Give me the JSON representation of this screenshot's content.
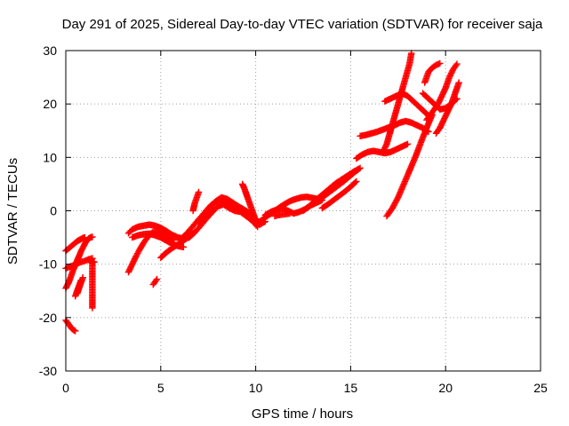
{
  "chart_data": {
    "type": "scatter",
    "title": "Day 291 of 2025, Sidereal Day-to-day VTEC variation (SDTVAR) for receiver saja",
    "xlabel": "GPS time / hours",
    "ylabel": "SDTVAR / TECUs",
    "xlim": [
      0,
      25
    ],
    "ylim": [
      -30,
      30
    ],
    "x_ticks": [
      "0",
      "5",
      "10",
      "15",
      "20",
      "25"
    ],
    "y_ticks": [
      "-30",
      "-20",
      "-10",
      "0",
      "10",
      "20",
      "30"
    ],
    "grid": true,
    "marker": "+",
    "color": "#ff0000",
    "series": [
      {
        "x": [
          0.0,
          0.1,
          0.2,
          0.3,
          0.4,
          0.5,
          0.6,
          0.7,
          0.8,
          0.9,
          1.0,
          1.1,
          1.2,
          1.3,
          1.4
        ],
        "y": [
          -14.5,
          -13.8,
          -13.0,
          -12.0,
          -11.0,
          -10.2,
          -9.3,
          -8.5,
          -7.6,
          -6.9,
          -6.2,
          -5.6,
          -5.2,
          -5.0,
          -4.9
        ]
      },
      {
        "x": [
          0.0,
          0.1,
          0.2,
          0.3,
          0.4,
          0.5,
          0.6,
          0.7,
          0.8,
          0.9,
          1.0
        ],
        "y": [
          -7.5,
          -7.2,
          -6.9,
          -6.6,
          -6.3,
          -6.0,
          -5.7,
          -5.5,
          -5.3,
          -5.1,
          -5.0
        ]
      },
      {
        "x": [
          0.0,
          0.1,
          0.2,
          0.3,
          0.4,
          0.5
        ],
        "y": [
          -20.5,
          -21.0,
          -21.5,
          -22.0,
          -22.3,
          -22.5
        ]
      },
      {
        "x": [
          0.0,
          0.2,
          0.4,
          0.6,
          0.8,
          1.0,
          1.2,
          1.4
        ],
        "y": [
          -10.8,
          -10.5,
          -10.2,
          -9.9,
          -9.6,
          -9.4,
          -9.1,
          -8.9
        ]
      },
      {
        "x": [
          0.5,
          0.6,
          0.7,
          0.8
        ],
        "y": [
          -16.0,
          -15.0,
          -14.0,
          -13.0
        ]
      },
      {
        "x": [
          0.6,
          0.65,
          0.7,
          0.75,
          0.8,
          0.85,
          0.9
        ],
        "y": [
          -15.5,
          -15.0,
          -14.5,
          -14.0,
          -13.5,
          -13.0,
          -12.5
        ]
      },
      {
        "x": [
          1.4,
          1.4,
          1.4,
          1.4,
          1.4,
          1.4,
          1.4,
          1.4,
          1.4
        ],
        "y": [
          -9.8,
          -10.8,
          -11.8,
          -12.8,
          -13.8,
          -14.8,
          -15.8,
          -17.0,
          -18.2
        ]
      },
      {
        "x": [
          1.2,
          1.3,
          1.4,
          1.5
        ],
        "y": [
          -9.2,
          -9.4,
          -9.5,
          -9.6
        ]
      },
      {
        "x": [
          3.3,
          3.5,
          3.7,
          3.9,
          4.1,
          4.3,
          4.5,
          4.7,
          4.9,
          5.1,
          5.3,
          5.5,
          5.7
        ],
        "y": [
          -11.5,
          -10.0,
          -8.5,
          -7.2,
          -6.0,
          -5.0,
          -4.2,
          -3.8,
          -3.9,
          -4.3,
          -4.8,
          -5.2,
          -5.5
        ]
      },
      {
        "x": [
          3.3,
          3.5,
          3.8,
          4.1,
          4.4,
          4.7,
          5.0,
          5.3,
          5.6,
          5.9,
          6.2,
          6.5
        ],
        "y": [
          -4.2,
          -3.5,
          -3.0,
          -2.8,
          -2.6,
          -2.8,
          -3.2,
          -3.8,
          -4.5,
          -5.0,
          -5.2,
          -5.0
        ]
      },
      {
        "x": [
          3.5,
          3.8,
          4.1,
          4.4,
          4.7,
          5.0,
          5.3,
          5.6,
          5.9,
          6.2
        ],
        "y": [
          -5.0,
          -4.6,
          -4.4,
          -4.3,
          -4.6,
          -5.0,
          -5.6,
          -6.2,
          -6.6,
          -6.8
        ]
      },
      {
        "x": [
          4.6,
          4.7,
          4.8
        ],
        "y": [
          -13.8,
          -13.3,
          -12.8
        ]
      },
      {
        "x": [
          5.0,
          5.3,
          5.6,
          5.9,
          6.2,
          6.5,
          6.8
        ],
        "y": [
          -8.8,
          -7.8,
          -7.0,
          -6.3,
          -5.6,
          -4.8,
          -4.0
        ]
      },
      {
        "x": [
          6.0,
          6.3,
          6.6,
          6.9,
          7.2,
          7.5,
          7.8,
          8.1,
          8.4,
          8.7,
          9.0,
          9.3,
          9.6,
          9.9,
          10.2,
          10.5
        ],
        "y": [
          -5.5,
          -4.5,
          -3.3,
          -2.0,
          -0.8,
          0.5,
          1.5,
          2.0,
          1.8,
          1.0,
          0.3,
          0.0,
          -1.0,
          -2.0,
          -2.6,
          -2.0
        ]
      },
      {
        "x": [
          6.5,
          6.8,
          7.1,
          7.4,
          7.7,
          8.0,
          8.3,
          8.6,
          8.9,
          9.2,
          9.5,
          9.8,
          10.1
        ],
        "y": [
          -5.0,
          -4.0,
          -2.8,
          -1.5,
          -0.3,
          0.8,
          1.2,
          0.5,
          0.0,
          -0.2,
          -1.0,
          -1.8,
          -3.0
        ]
      },
      {
        "x": [
          7.0,
          7.3,
          7.6,
          7.9,
          8.2,
          8.5,
          8.8,
          9.1,
          9.4,
          9.7,
          10.0
        ],
        "y": [
          -2.5,
          -1.0,
          0.5,
          1.8,
          2.5,
          2.2,
          1.5,
          0.8,
          0.2,
          -0.5,
          -1.5
        ]
      },
      {
        "x": [
          6.7,
          6.75,
          6.8,
          6.85,
          6.9,
          6.95,
          7.0
        ],
        "y": [
          0.0,
          0.8,
          1.5,
          2.0,
          2.5,
          3.0,
          3.5
        ]
      },
      {
        "x": [
          9.3,
          9.4,
          9.5,
          9.6,
          9.7,
          9.8,
          9.9,
          10.0,
          10.1
        ],
        "y": [
          5.0,
          4.2,
          3.2,
          2.2,
          1.2,
          0.2,
          -0.8,
          -1.8,
          -2.8
        ]
      },
      {
        "x": [
          10.0,
          10.3,
          10.6,
          10.9,
          11.2,
          11.5,
          11.8,
          12.1,
          12.4,
          12.7,
          13.0,
          13.3
        ],
        "y": [
          -2.5,
          -1.8,
          -1.0,
          -0.3,
          0.5,
          1.2,
          1.8,
          2.2,
          2.5,
          2.6,
          2.4,
          2.2
        ]
      },
      {
        "x": [
          10.5,
          10.8,
          11.1,
          11.4,
          11.7,
          12.0,
          12.3,
          12.6,
          12.9,
          13.2,
          13.5
        ],
        "y": [
          -0.8,
          -0.2,
          0.2,
          0.5,
          0.0,
          -0.5,
          -0.2,
          0.3,
          1.0,
          1.5,
          2.0
        ]
      },
      {
        "x": [
          11.0,
          11.2,
          11.4,
          11.6,
          11.8
        ],
        "y": [
          -1.0,
          -0.8,
          -0.7,
          -0.6,
          -0.5
        ]
      },
      {
        "x": [
          12.5,
          12.8,
          13.1,
          13.4,
          13.7,
          14.0,
          14.3,
          14.6,
          14.9,
          15.2,
          15.5
        ],
        "y": [
          0.0,
          0.8,
          1.6,
          2.3,
          3.0,
          3.8,
          4.6,
          5.4,
          6.3,
          7.2,
          8.0
        ]
      },
      {
        "x": [
          13.0,
          13.3,
          13.6,
          13.9,
          14.2,
          14.5,
          14.8,
          15.1,
          15.4
        ],
        "y": [
          1.5,
          2.4,
          3.3,
          4.2,
          5.1,
          5.8,
          6.5,
          7.2,
          7.8
        ]
      },
      {
        "x": [
          13.5,
          13.8,
          14.1,
          14.4,
          14.7,
          15.0,
          15.3
        ],
        "y": [
          0.5,
          1.2,
          2.0,
          2.8,
          3.6,
          4.5,
          5.5
        ]
      },
      {
        "x": [
          15.3,
          15.6,
          15.9,
          16.2,
          16.5,
          16.8,
          17.1,
          17.4,
          17.7,
          18.0
        ],
        "y": [
          9.8,
          10.5,
          11.0,
          11.2,
          11.0,
          10.8,
          11.0,
          11.5,
          12.0,
          12.5
        ]
      },
      {
        "x": [
          15.5,
          15.8,
          16.1,
          16.4,
          16.7,
          17.0,
          17.3,
          17.6,
          17.9,
          18.2,
          18.5,
          18.8,
          19.1
        ],
        "y": [
          14.0,
          14.2,
          14.5,
          14.8,
          15.2,
          15.6,
          16.0,
          16.5,
          16.8,
          16.5,
          16.0,
          15.5,
          14.8
        ]
      },
      {
        "x": [
          16.7,
          16.9,
          17.1,
          17.3,
          17.5,
          17.7,
          17.9,
          18.1,
          18.2
        ],
        "y": [
          11.0,
          12.5,
          15.0,
          17.5,
          20.0,
          22.5,
          25.0,
          27.5,
          29.5
        ]
      },
      {
        "x": [
          16.9,
          17.2,
          17.5,
          17.8,
          18.1,
          18.4,
          18.7,
          19.0,
          19.3
        ],
        "y": [
          -1.0,
          0.5,
          2.5,
          5.0,
          7.5,
          10.0,
          12.8,
          15.5,
          18.0
        ]
      },
      {
        "x": [
          16.8,
          17.1,
          17.4,
          17.7,
          18.0,
          18.3,
          18.6,
          18.9,
          19.2
        ],
        "y": [
          20.5,
          21.0,
          21.5,
          22.0,
          21.5,
          20.5,
          19.5,
          18.5,
          17.5
        ]
      },
      {
        "x": [
          18.8,
          19.1,
          19.4,
          19.7,
          20.0,
          20.3,
          20.6
        ],
        "y": [
          22.0,
          21.0,
          20.0,
          19.0,
          19.2,
          20.0,
          21.0
        ]
      },
      {
        "x": [
          19.0,
          19.2,
          19.4,
          19.6,
          19.8,
          20.0,
          20.2,
          20.4,
          20.6
        ],
        "y": [
          17.0,
          18.0,
          19.0,
          20.0,
          21.5,
          23.0,
          25.0,
          26.5,
          27.5
        ]
      },
      {
        "x": [
          19.5,
          19.7,
          19.9,
          20.1,
          20.3,
          20.5,
          20.7
        ],
        "y": [
          14.5,
          15.5,
          17.0,
          18.5,
          20.0,
          22.0,
          24.0
        ]
      },
      {
        "x": [
          18.9,
          19.0,
          19.1,
          19.3,
          19.5,
          19.7
        ],
        "y": [
          24.0,
          25.0,
          26.0,
          26.8,
          27.3,
          27.6
        ]
      }
    ]
  }
}
